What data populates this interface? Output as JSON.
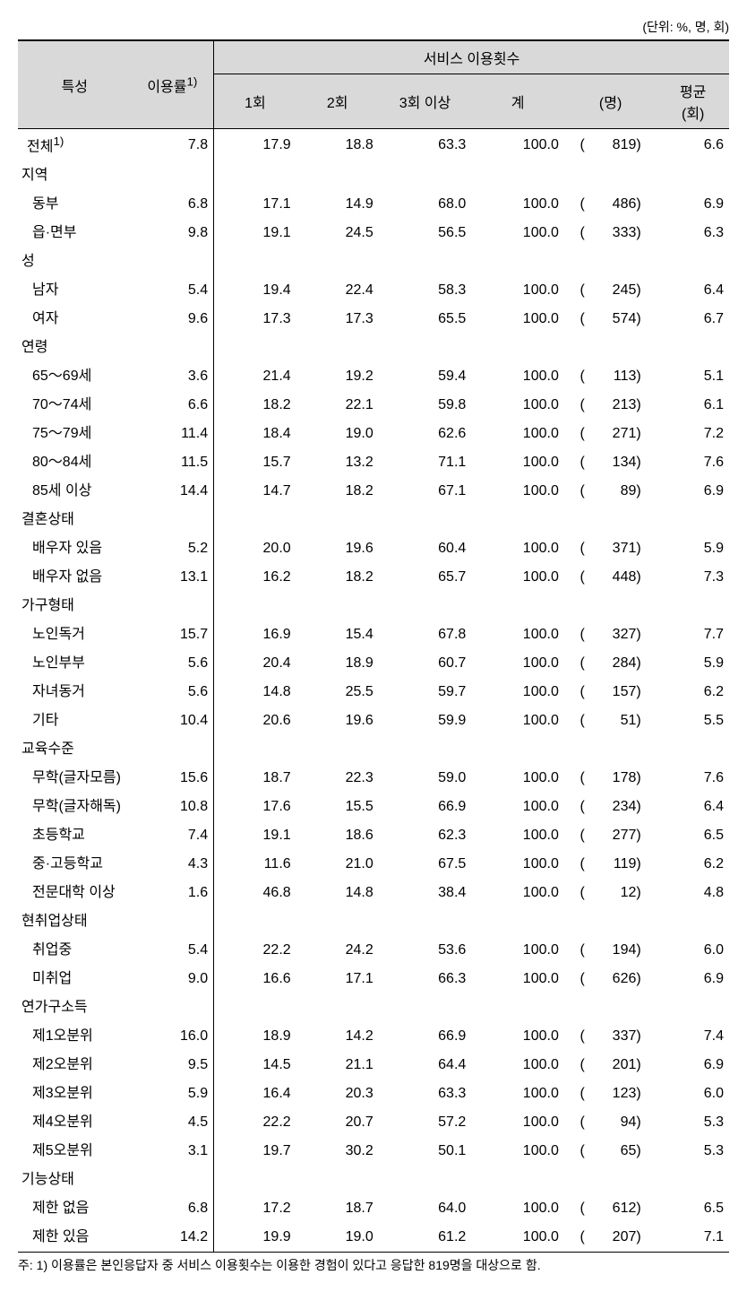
{
  "unit_label": "(단위: %, 명, 회)",
  "headers": {
    "char": "특성",
    "rate": "이용률",
    "rate_sup": "1)",
    "service": "서비스 이용횟수",
    "c1": "1회",
    "c2": "2회",
    "c3": "3회 이상",
    "total": "계",
    "count": "(명)",
    "avg_l1": "평균",
    "avg_l2": "(회)"
  },
  "rows": [
    {
      "type": "data",
      "label": "전체",
      "sup": "1)",
      "rate": "7.8",
      "c1": "17.9",
      "c2": "18.8",
      "c3": "63.3",
      "tot": "100.0",
      "n": "819",
      "avg": "6.6"
    },
    {
      "type": "section",
      "label": "지역"
    },
    {
      "type": "data",
      "label": "동부",
      "indent": true,
      "rate": "6.8",
      "c1": "17.1",
      "c2": "14.9",
      "c3": "68.0",
      "tot": "100.0",
      "n": "486",
      "avg": "6.9"
    },
    {
      "type": "data",
      "label": "읍·면부",
      "indent": true,
      "rate": "9.8",
      "c1": "19.1",
      "c2": "24.5",
      "c3": "56.5",
      "tot": "100.0",
      "n": "333",
      "avg": "6.3"
    },
    {
      "type": "section",
      "label": "성"
    },
    {
      "type": "data",
      "label": "남자",
      "indent": true,
      "rate": "5.4",
      "c1": "19.4",
      "c2": "22.4",
      "c3": "58.3",
      "tot": "100.0",
      "n": "245",
      "avg": "6.4"
    },
    {
      "type": "data",
      "label": "여자",
      "indent": true,
      "rate": "9.6",
      "c1": "17.3",
      "c2": "17.3",
      "c3": "65.5",
      "tot": "100.0",
      "n": "574",
      "avg": "6.7"
    },
    {
      "type": "section",
      "label": "연령"
    },
    {
      "type": "data",
      "label": "65～69세",
      "indent": true,
      "rate": "3.6",
      "c1": "21.4",
      "c2": "19.2",
      "c3": "59.4",
      "tot": "100.0",
      "n": "113",
      "avg": "5.1"
    },
    {
      "type": "data",
      "label": "70～74세",
      "indent": true,
      "rate": "6.6",
      "c1": "18.2",
      "c2": "22.1",
      "c3": "59.8",
      "tot": "100.0",
      "n": "213",
      "avg": "6.1"
    },
    {
      "type": "data",
      "label": "75～79세",
      "indent": true,
      "rate": "11.4",
      "c1": "18.4",
      "c2": "19.0",
      "c3": "62.6",
      "tot": "100.0",
      "n": "271",
      "avg": "7.2"
    },
    {
      "type": "data",
      "label": "80～84세",
      "indent": true,
      "rate": "11.5",
      "c1": "15.7",
      "c2": "13.2",
      "c3": "71.1",
      "tot": "100.0",
      "n": "134",
      "avg": "7.6"
    },
    {
      "type": "data",
      "label": "85세 이상",
      "indent": true,
      "rate": "14.4",
      "c1": "14.7",
      "c2": "18.2",
      "c3": "67.1",
      "tot": "100.0",
      "n": "89",
      "avg": "6.9"
    },
    {
      "type": "section",
      "label": "결혼상태"
    },
    {
      "type": "data",
      "label": "배우자 있음",
      "indent": true,
      "rate": "5.2",
      "c1": "20.0",
      "c2": "19.6",
      "c3": "60.4",
      "tot": "100.0",
      "n": "371",
      "avg": "5.9"
    },
    {
      "type": "data",
      "label": "배우자 없음",
      "indent": true,
      "rate": "13.1",
      "c1": "16.2",
      "c2": "18.2",
      "c3": "65.7",
      "tot": "100.0",
      "n": "448",
      "avg": "7.3"
    },
    {
      "type": "section",
      "label": "가구형태"
    },
    {
      "type": "data",
      "label": "노인독거",
      "indent": true,
      "rate": "15.7",
      "c1": "16.9",
      "c2": "15.4",
      "c3": "67.8",
      "tot": "100.0",
      "n": "327",
      "avg": "7.7"
    },
    {
      "type": "data",
      "label": "노인부부",
      "indent": true,
      "rate": "5.6",
      "c1": "20.4",
      "c2": "18.9",
      "c3": "60.7",
      "tot": "100.0",
      "n": "284",
      "avg": "5.9"
    },
    {
      "type": "data",
      "label": "자녀동거",
      "indent": true,
      "rate": "5.6",
      "c1": "14.8",
      "c2": "25.5",
      "c3": "59.7",
      "tot": "100.0",
      "n": "157",
      "avg": "6.2"
    },
    {
      "type": "data",
      "label": "기타",
      "indent": true,
      "rate": "10.4",
      "c1": "20.6",
      "c2": "19.6",
      "c3": "59.9",
      "tot": "100.0",
      "n": "51",
      "avg": "5.5"
    },
    {
      "type": "section",
      "label": "교육수준"
    },
    {
      "type": "data",
      "label": "무학(글자모름)",
      "indent": true,
      "rate": "15.6",
      "c1": "18.7",
      "c2": "22.3",
      "c3": "59.0",
      "tot": "100.0",
      "n": "178",
      "avg": "7.6"
    },
    {
      "type": "data",
      "label": "무학(글자해독)",
      "indent": true,
      "rate": "10.8",
      "c1": "17.6",
      "c2": "15.5",
      "c3": "66.9",
      "tot": "100.0",
      "n": "234",
      "avg": "6.4"
    },
    {
      "type": "data",
      "label": "초등학교",
      "indent": true,
      "rate": "7.4",
      "c1": "19.1",
      "c2": "18.6",
      "c3": "62.3",
      "tot": "100.0",
      "n": "277",
      "avg": "6.5"
    },
    {
      "type": "data",
      "label": "중·고등학교",
      "indent": true,
      "rate": "4.3",
      "c1": "11.6",
      "c2": "21.0",
      "c3": "67.5",
      "tot": "100.0",
      "n": "119",
      "avg": "6.2"
    },
    {
      "type": "data",
      "label": "전문대학 이상",
      "indent": true,
      "rate": "1.6",
      "c1": "46.8",
      "c2": "14.8",
      "c3": "38.4",
      "tot": "100.0",
      "n": "12",
      "avg": "4.8"
    },
    {
      "type": "section",
      "label": "현취업상태"
    },
    {
      "type": "data",
      "label": "취업중",
      "indent": true,
      "rate": "5.4",
      "c1": "22.2",
      "c2": "24.2",
      "c3": "53.6",
      "tot": "100.0",
      "n": "194",
      "avg": "6.0"
    },
    {
      "type": "data",
      "label": "미취업",
      "indent": true,
      "rate": "9.0",
      "c1": "16.6",
      "c2": "17.1",
      "c3": "66.3",
      "tot": "100.0",
      "n": "626",
      "avg": "6.9"
    },
    {
      "type": "section",
      "label": "연가구소득"
    },
    {
      "type": "data",
      "label": "제1오분위",
      "indent": true,
      "rate": "16.0",
      "c1": "18.9",
      "c2": "14.2",
      "c3": "66.9",
      "tot": "100.0",
      "n": "337",
      "avg": "7.4"
    },
    {
      "type": "data",
      "label": "제2오분위",
      "indent": true,
      "rate": "9.5",
      "c1": "14.5",
      "c2": "21.1",
      "c3": "64.4",
      "tot": "100.0",
      "n": "201",
      "avg": "6.9"
    },
    {
      "type": "data",
      "label": "제3오분위",
      "indent": true,
      "rate": "5.9",
      "c1": "16.4",
      "c2": "20.3",
      "c3": "63.3",
      "tot": "100.0",
      "n": "123",
      "avg": "6.0"
    },
    {
      "type": "data",
      "label": "제4오분위",
      "indent": true,
      "rate": "4.5",
      "c1": "22.2",
      "c2": "20.7",
      "c3": "57.2",
      "tot": "100.0",
      "n": "94",
      "avg": "5.3"
    },
    {
      "type": "data",
      "label": "제5오분위",
      "indent": true,
      "rate": "3.1",
      "c1": "19.7",
      "c2": "30.2",
      "c3": "50.1",
      "tot": "100.0",
      "n": "65",
      "avg": "5.3"
    },
    {
      "type": "section",
      "label": "기능상태"
    },
    {
      "type": "data",
      "label": "제한 없음",
      "indent": true,
      "rate": "6.8",
      "c1": "17.2",
      "c2": "18.7",
      "c3": "64.0",
      "tot": "100.0",
      "n": "612",
      "avg": "6.5"
    },
    {
      "type": "data",
      "label": "제한 있음",
      "indent": true,
      "last": true,
      "rate": "14.2",
      "c1": "19.9",
      "c2": "19.0",
      "c3": "61.2",
      "tot": "100.0",
      "n": "207",
      "avg": "7.1"
    }
  ],
  "footnote": "주: 1) 이용률은 본인응답자 중 서비스 이용횟수는 이용한 경험이 있다고 응답한 819명을 대상으로 함.",
  "colors": {
    "header_bg": "#d9d9d9",
    "border": "#000000",
    "text": "#000000",
    "background": "#ffffff"
  },
  "font": {
    "body_size_pt": 12,
    "small_size_pt": 10,
    "family": "Malgun Gothic"
  }
}
